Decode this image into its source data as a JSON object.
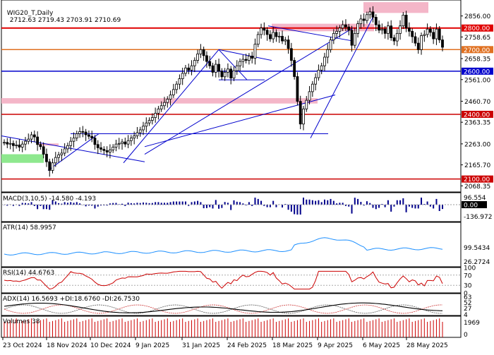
{
  "window": {
    "symbol_label": "WIG20_T,Daily",
    "ohlc_label": "2712.63 2719.43 2703.91 2710.69"
  },
  "indicators": {
    "macd_label": "MACD(3,10,5) -14.580 -4.193",
    "atr_label": "ATR(14) 58.9957",
    "rsi_label": "RSI(14) 44.6763",
    "adx_label": "ADX(14) 16.5693 +DI:18.6760 -DI:26.7530",
    "volume_label": "Volumes 38"
  },
  "price_axis": {
    "ticks": [
      "2856.00",
      "2758.65",
      "2658.35",
      "2561.00",
      "2460.70",
      "2363.35",
      "2263.00",
      "2165.70",
      "2068.35"
    ],
    "levels": [
      {
        "label": "2800.00",
        "color": "#e00000"
      },
      {
        "label": "2700.00",
        "color": "#e07020"
      },
      {
        "label": "2600.00",
        "color": "#0000cc"
      },
      {
        "label": "2400.00",
        "color": "#cc0000"
      },
      {
        "label": "2100.00",
        "color": "#cc0000"
      }
    ]
  },
  "indicator_axes": {
    "macd": [
      "96.554",
      "0.00",
      "-136.972"
    ],
    "atr": [
      "99.5434",
      "26.2724"
    ],
    "rsi": [
      "100",
      "70",
      "30",
      "0"
    ],
    "adx": [
      "63",
      "52",
      "27",
      "4"
    ],
    "volume": [
      "1969",
      "0"
    ]
  },
  "time_axis": [
    "23 Oct 2024",
    "18 Nov 2024",
    "10 Dec 2024",
    "9 Jan 2025",
    "31 Jan 2025",
    "24 Feb 2025",
    "18 Mar 2025",
    "9 Apr 2025",
    "6 May 2025",
    "28 May 2025"
  ],
  "colors": {
    "bull": "#000000",
    "bear": "#000000",
    "macd_bar": "#00008b",
    "macd_signal": "#dd0000",
    "atr_line": "#1e90ff",
    "rsi_line": "#cc0000",
    "adx_line": "#000000",
    "volume_bar": "#cc0000",
    "zone_pink": "#f4b6c8",
    "zone_green": "#8ee88e",
    "trendline": "#0000cc"
  },
  "chart_data": {
    "type": "candlestick",
    "title": "WIG20_T,Daily",
    "ylim": [
      2040,
      2930
    ],
    "close": [
      2270,
      2262,
      2265,
      2255,
      2258,
      2248,
      2262,
      2275,
      2285,
      2305,
      2295,
      2260,
      2250,
      2215,
      2180,
      2140,
      2175,
      2200,
      2212,
      2220,
      2240,
      2255,
      2275,
      2290,
      2310,
      2320,
      2318,
      2305,
      2298,
      2290,
      2260,
      2245,
      2238,
      2232,
      2225,
      2235,
      2248,
      2262,
      2265,
      2272,
      2262,
      2278,
      2290,
      2300,
      2315,
      2328,
      2345,
      2360,
      2372,
      2385,
      2405,
      2425,
      2440,
      2455,
      2470,
      2490,
      2515,
      2540,
      2565,
      2590,
      2615,
      2605,
      2625,
      2650,
      2680,
      2700,
      2672,
      2645,
      2625,
      2595,
      2632,
      2600,
      2574,
      2595,
      2610,
      2568,
      2602,
      2625,
      2645,
      2655,
      2650,
      2670,
      2660,
      2725,
      2770,
      2800,
      2790,
      2770,
      2750,
      2780,
      2760,
      2762,
      2740,
      2745,
      2705,
      2650,
      2575,
      2460,
      2355,
      2425,
      2465,
      2505,
      2540,
      2570,
      2605,
      2625,
      2665,
      2700,
      2745,
      2775,
      2785,
      2800,
      2815,
      2805,
      2790,
      2720,
      2775,
      2820,
      2842,
      2835,
      2862,
      2875,
      2850,
      2815,
      2790,
      2795,
      2775,
      2810,
      2755,
      2740,
      2775,
      2810,
      2860,
      2800,
      2785,
      2760,
      2730,
      2700,
      2765,
      2770,
      2795,
      2780,
      2750,
      2795,
      2745,
      2711
    ]
  }
}
